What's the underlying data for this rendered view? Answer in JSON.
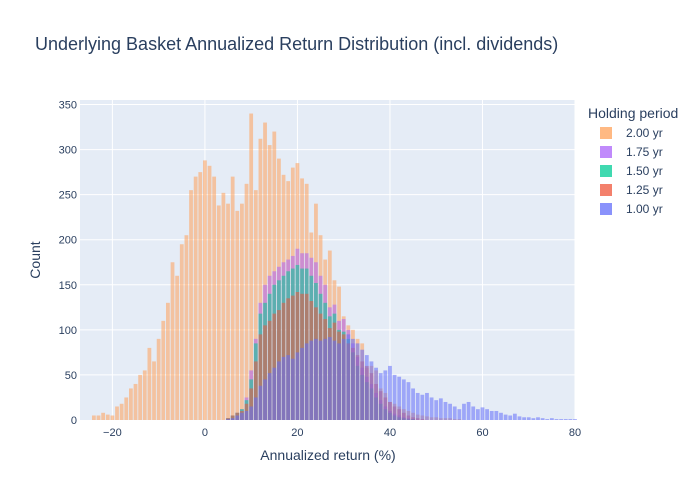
{
  "chart_data": {
    "type": "bar",
    "barmode": "overlay",
    "title": "Underlying Basket Annualized Return Distribution (incl. dividends)",
    "xlabel": "Annualized return (%)",
    "ylabel": "Count",
    "xlim": [
      -27,
      80
    ],
    "ylim": [
      0,
      355
    ],
    "x_ticks": [
      -20,
      0,
      20,
      40,
      60,
      80
    ],
    "y_ticks": [
      0,
      50,
      100,
      150,
      200,
      250,
      300,
      350
    ],
    "grid": true,
    "legend_title": "Holding period",
    "legend_position": "top-right",
    "series": [
      {
        "name": "2.00 yr",
        "color": "#FFA15A",
        "start": -24,
        "step": 1,
        "values": [
          5,
          5,
          8,
          6,
          5,
          15,
          18,
          25,
          35,
          40,
          50,
          55,
          80,
          65,
          90,
          110,
          130,
          175,
          160,
          195,
          205,
          255,
          270,
          275,
          288,
          282,
          270,
          238,
          252,
          240,
          270,
          232,
          240,
          262,
          340,
          255,
          312,
          330,
          305,
          320,
          290,
          272,
          265,
          280,
          285,
          268,
          262,
          208,
          240,
          205,
          178,
          188,
          155,
          148,
          115,
          105,
          100,
          90,
          85,
          58,
          60,
          55,
          35,
          30,
          20,
          18,
          15,
          12,
          10,
          8,
          6,
          5,
          4,
          3,
          3,
          2,
          2,
          2,
          1,
          1
        ]
      },
      {
        "name": "1.75 yr",
        "color": "#AB63FA",
        "start": 5,
        "step": 1,
        "values": [
          2,
          5,
          8,
          12,
          25,
          55,
          90,
          130,
          150,
          160,
          165,
          170,
          175,
          178,
          182,
          190,
          185,
          185,
          180,
          175,
          160,
          150,
          125,
          128,
          110,
          112,
          100,
          85,
          70,
          58,
          48,
          40,
          30,
          22,
          15,
          10,
          7,
          5,
          3,
          2,
          1
        ]
      },
      {
        "name": "1.50 yr",
        "color": "#00CC96",
        "start": 5,
        "step": 1,
        "values": [
          2,
          5,
          8,
          12,
          22,
          45,
          85,
          118,
          130,
          140,
          150,
          155,
          160,
          165,
          168,
          172,
          168,
          168,
          160,
          152,
          140,
          130,
          115,
          118,
          100,
          98,
          90,
          75,
          60,
          50,
          42,
          35,
          25,
          18,
          12,
          8,
          5,
          3,
          2,
          1,
          1
        ]
      },
      {
        "name": "1.25 yr",
        "color": "#EF553B",
        "start": 5,
        "step": 1,
        "values": [
          2,
          5,
          8,
          10,
          18,
          35,
          65,
          95,
          105,
          110,
          118,
          122,
          130,
          135,
          138,
          142,
          140,
          140,
          132,
          125,
          118,
          112,
          102,
          108,
          98,
          95,
          85,
          80,
          72,
          65,
          60,
          52,
          40,
          32,
          25,
          20,
          15,
          12,
          8,
          5,
          3,
          2,
          1
        ]
      },
      {
        "name": "1.00 yr",
        "color": "#636EFA",
        "start": 5,
        "step": 1,
        "values": [
          1,
          2,
          5,
          8,
          10,
          15,
          25,
          38,
          45,
          52,
          58,
          65,
          70,
          72,
          68,
          75,
          80,
          85,
          88,
          90,
          88,
          90,
          92,
          88,
          85,
          90,
          95,
          90,
          85,
          78,
          72,
          65,
          58,
          52,
          55,
          60,
          50,
          48,
          45,
          42,
          35,
          30,
          28,
          30,
          25,
          22,
          24,
          20,
          18,
          15,
          12,
          18,
          20,
          15,
          12,
          14,
          12,
          10,
          10,
          8,
          6,
          5,
          7,
          4,
          3,
          3,
          2,
          3,
          2,
          1,
          2,
          1,
          1,
          1,
          1,
          1
        ]
      }
    ]
  }
}
